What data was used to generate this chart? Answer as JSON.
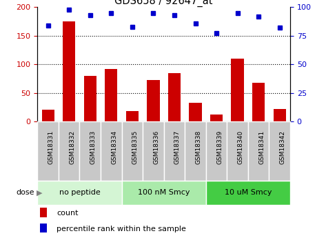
{
  "title": "GDS658 / 92647_at",
  "samples": [
    "GSM18331",
    "GSM18332",
    "GSM18333",
    "GSM18334",
    "GSM18335",
    "GSM18336",
    "GSM18337",
    "GSM18338",
    "GSM18339",
    "GSM18340",
    "GSM18341",
    "GSM18342"
  ],
  "counts": [
    20,
    175,
    80,
    92,
    18,
    73,
    85,
    32,
    12,
    110,
    68,
    22
  ],
  "percentiles": [
    84,
    98,
    93,
    95,
    83,
    95,
    93,
    86,
    77,
    95,
    92,
    82
  ],
  "groups": [
    {
      "label": "no peptide",
      "start": 0,
      "end": 4,
      "color": "#d4f5d4"
    },
    {
      "label": "100 nM Smcy",
      "start": 4,
      "end": 8,
      "color": "#aaeaaa"
    },
    {
      "label": "10 uM Smcy",
      "start": 8,
      "end": 12,
      "color": "#44cc44"
    }
  ],
  "bar_color": "#cc0000",
  "dot_color": "#0000cc",
  "ylim_left": [
    0,
    200
  ],
  "ylim_right": [
    0,
    100
  ],
  "yticks_left": [
    0,
    50,
    100,
    150,
    200
  ],
  "yticks_right": [
    0,
    25,
    50,
    75,
    100
  ],
  "left_tick_color": "#cc0000",
  "right_tick_color": "#0000cc",
  "grid_values": [
    50,
    100,
    150
  ],
  "legend_count_label": "count",
  "legend_pct_label": "percentile rank within the sample",
  "xtick_bg": "#c8c8c8",
  "xtick_border": "#ffffff"
}
